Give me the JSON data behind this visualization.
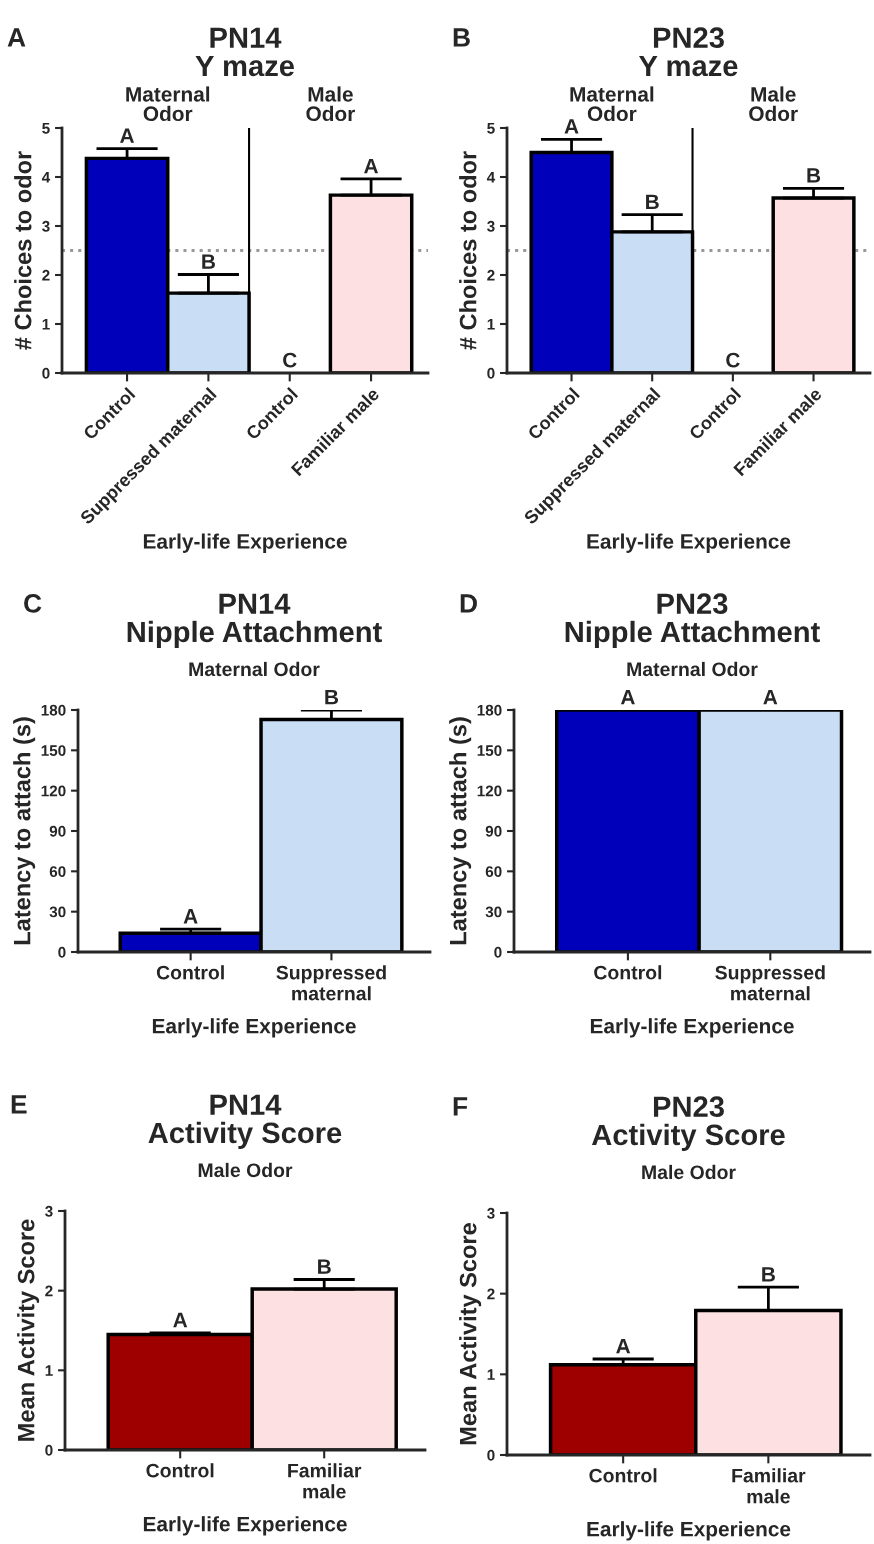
{
  "chart_data": [
    {
      "type": "bar",
      "title": "PN14\nY maze",
      "xlabel": "Early-life Experience",
      "ylabel": "# Choices to odor",
      "annotations": [
        "A",
        "Maternal\nOdor",
        "Male\nOdor"
      ],
      "categories": [
        "Control",
        "Suppressed maternal",
        "Control",
        "Familiar male"
      ],
      "values": [
        4.38,
        1.63,
        0,
        3.63
      ],
      "colors": [
        "#0000bb",
        "#c9ddf5",
        "#c9ddf5",
        "#fde0e2"
      ],
      "errors": [
        [
          4.38,
          4.58
        ],
        [
          1.63,
          2.01
        ],
        null,
        [
          3.63,
          3.96
        ]
      ],
      "value_labels": [
        "A",
        "B",
        "C",
        "A"
      ],
      "ylim": [
        0,
        5
      ],
      "yticks": [
        0,
        1,
        2,
        3,
        4,
        5
      ],
      "ref_lines": [
        {
          "axis": "y",
          "value": 2.5,
          "color": "#999999",
          "line_style": "dotted"
        }
      ]
    },
    {
      "type": "bar",
      "title": "PN23\nY maze",
      "xlabel": "Early-life Experience",
      "ylabel": "# Choices to odor",
      "annotations": [
        "B",
        "Maternal\nOdor",
        "Male\nOdor"
      ],
      "categories": [
        "Control",
        "Suppressed maternal",
        "Control",
        "Familiar male"
      ],
      "values": [
        4.5,
        2.88,
        0,
        3.57
      ],
      "colors": [
        "#0000bb",
        "#c9ddf5",
        "#c9ddf5",
        "#fde0e2"
      ],
      "errors": [
        [
          4.5,
          4.77
        ],
        [
          2.88,
          3.23
        ],
        null,
        [
          3.57,
          3.77
        ]
      ],
      "value_labels": [
        "A",
        "B",
        "C",
        "B"
      ],
      "ylim": [
        0,
        5
      ],
      "yticks": [
        0,
        1,
        2,
        3,
        4,
        5
      ],
      "ref_lines": [
        {
          "axis": "y",
          "value": 2.5,
          "color": "#999999",
          "line_style": "dotted"
        }
      ]
    },
    {
      "type": "bar",
      "title": "PN14\nNipple Attachment",
      "subtitle": "Maternal Odor",
      "xlabel": "Early-life Experience",
      "ylabel": "Latency to attach (s)",
      "annotations": [
        "C"
      ],
      "categories": [
        "Control",
        "Suppressed\nmaternal"
      ],
      "values": [
        14,
        173
      ],
      "colors": [
        "#0000bb",
        "#c9ddf5"
      ],
      "errors": [
        [
          14,
          17
        ],
        [
          173,
          180
        ]
      ],
      "value_labels": [
        "A",
        "B"
      ],
      "ylim": [
        0,
        180
      ],
      "yticks": [
        0,
        30,
        60,
        90,
        120,
        150,
        180
      ]
    },
    {
      "type": "bar",
      "title": "PN23\nNipple Attachment",
      "subtitle": "Maternal Odor",
      "xlabel": "Early-life Experience",
      "ylabel": "Latency to attach (s)",
      "annotations": [
        "D"
      ],
      "categories": [
        "Control",
        "Suppressed\nmaternal"
      ],
      "values": [
        180,
        180
      ],
      "colors": [
        "#0000bb",
        "#c9ddf5"
      ],
      "value_labels": [
        "A",
        "A"
      ],
      "ylim": [
        0,
        180
      ],
      "yticks": [
        0,
        30,
        60,
        90,
        120,
        150,
        180
      ]
    },
    {
      "type": "bar",
      "title": "PN14\nActivity Score",
      "subtitle": "Male Odor",
      "xlabel": "Early-life Experience",
      "ylabel": "Mean Activity Score",
      "annotations": [
        "E"
      ],
      "categories": [
        "Control",
        "Familiar\nmale"
      ],
      "values": [
        1.45,
        2.02
      ],
      "colors": [
        "#9e0000",
        "#fde0e2"
      ],
      "errors": [
        [
          1.45,
          1.47
        ],
        [
          2.02,
          2.14
        ]
      ],
      "value_labels": [
        "A",
        "B"
      ],
      "ylim": [
        0,
        3
      ],
      "yticks": [
        0,
        1,
        2,
        3
      ]
    },
    {
      "type": "bar",
      "title": "PN23\nActivity Score",
      "subtitle": "Male Odor",
      "xlabel": "Early-life Experience",
      "ylabel": "Mean Activity Score",
      "annotations": [
        "F"
      ],
      "categories": [
        "Control",
        "Familiar\nmale"
      ],
      "values": [
        1.12,
        1.79
      ],
      "colors": [
        "#9e0000",
        "#fde0e2"
      ],
      "errors": [
        [
          1.12,
          1.19
        ],
        [
          1.79,
          2.08
        ]
      ],
      "value_labels": [
        "A",
        "B"
      ],
      "ylim": [
        0,
        3
      ],
      "yticks": [
        0,
        1,
        2,
        3
      ]
    }
  ]
}
